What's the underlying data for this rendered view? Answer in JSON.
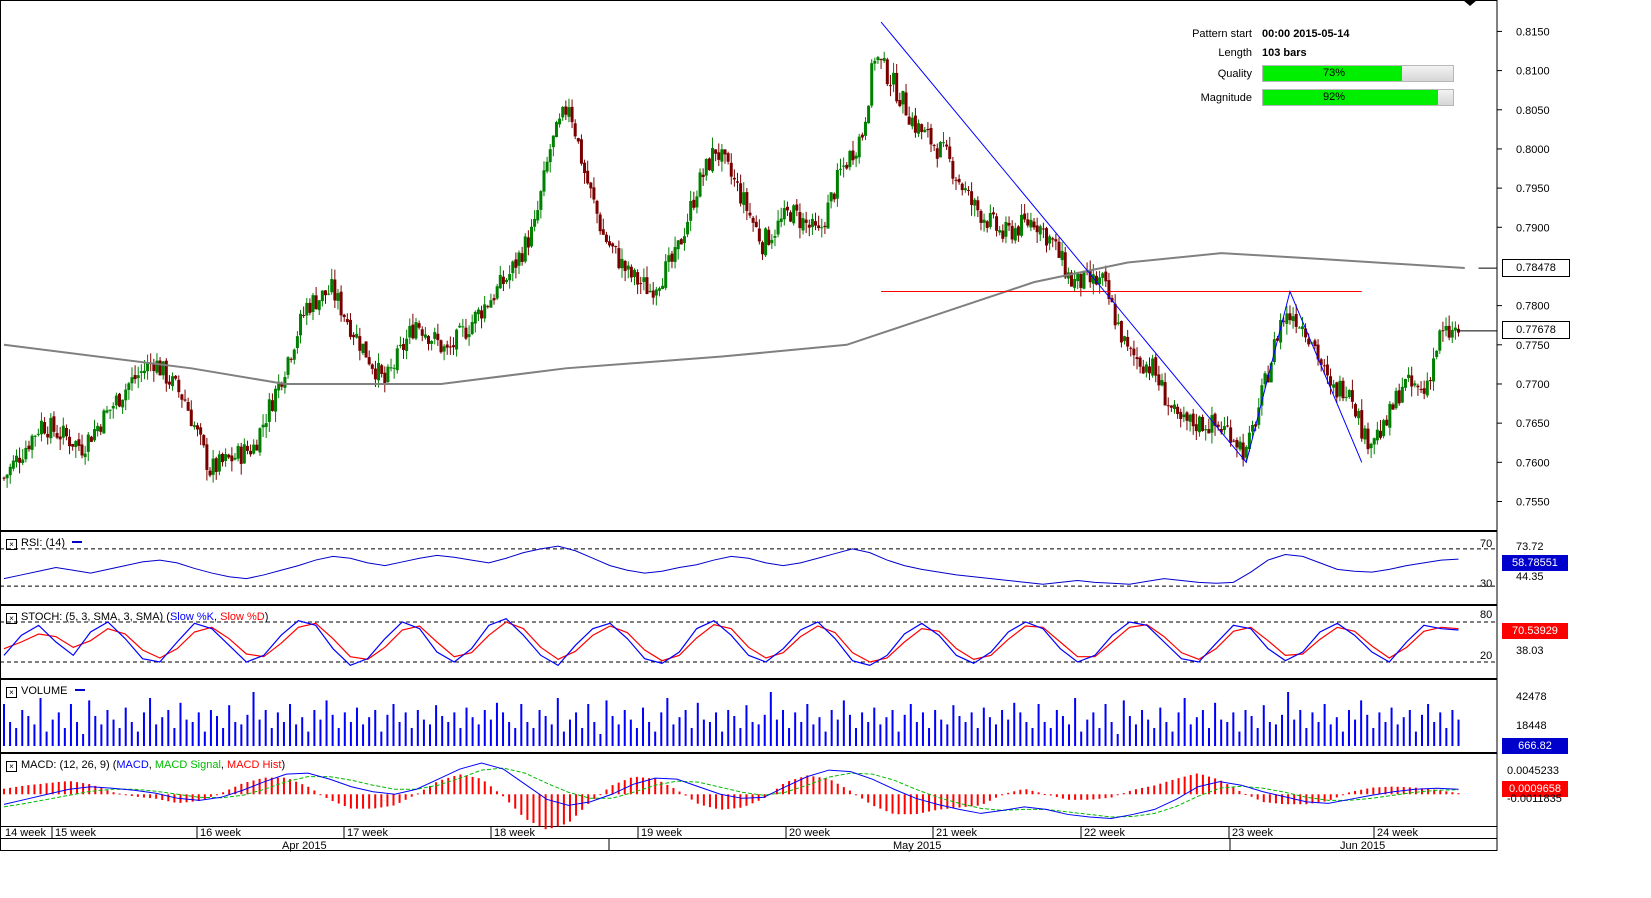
{
  "pattern_info": {
    "pattern_start_label": "Pattern start",
    "pattern_start_value": "00:00 2015-05-14",
    "length_label": "Length",
    "length_value": "103 bars",
    "quality_label": "Quality",
    "quality_value": "73%",
    "quality_fraction": 0.73,
    "magnitude_label": "Magnitude",
    "magnitude_value": "92%",
    "magnitude_fraction": 0.92
  },
  "colors": {
    "bull_candle": "#008000",
    "bear_candle": "#7a0000",
    "ma_line": "#808080",
    "pattern_line": "#0000ff",
    "support_line": "#ff0000",
    "rsi_line": "#0000cc",
    "stoch_k": "#0000ff",
    "stoch_d": "#ff0000",
    "volume": "#0000ff",
    "macd_line": "#0000ff",
    "macd_signal": "#00bb00",
    "macd_hist": "#ff0000",
    "quality_bar": "#00ee00"
  },
  "chart_data": [
    {
      "type": "candlestick",
      "y_ticks": [
        "0.8150",
        "0.8100",
        "0.8050",
        "0.8000",
        "0.7950",
        "0.7900",
        "0.7800",
        "0.7750",
        "0.7700",
        "0.7650",
        "0.7600",
        "0.7550"
      ],
      "ylim": [
        0.752,
        0.8185
      ],
      "ma_last_value": "0.78478",
      "current_price": "0.77678",
      "support_level": 0.7818,
      "pattern_points": [
        {
          "bar": 281,
          "price": 0.8162
        },
        {
          "bar": 398,
          "price": 0.76
        },
        {
          "bar": 412,
          "price": 0.7818
        },
        {
          "bar": 435,
          "price": 0.76
        }
      ],
      "ma_points": [
        {
          "bar": 0,
          "price": 0.775
        },
        {
          "bar": 60,
          "price": 0.772
        },
        {
          "bar": 90,
          "price": 0.77
        },
        {
          "bar": 140,
          "price": 0.77
        },
        {
          "bar": 180,
          "price": 0.772
        },
        {
          "bar": 230,
          "price": 0.7735
        },
        {
          "bar": 270,
          "price": 0.775
        },
        {
          "bar": 300,
          "price": 0.779
        },
        {
          "bar": 330,
          "price": 0.783
        },
        {
          "bar": 360,
          "price": 0.7855
        },
        {
          "bar": 390,
          "price": 0.7867
        },
        {
          "bar": 420,
          "price": 0.786
        },
        {
          "bar": 468,
          "price": 0.7848
        }
      ],
      "price_path": [
        {
          "bar": 0,
          "price": 0.758
        },
        {
          "bar": 12,
          "price": 0.765
        },
        {
          "bar": 25,
          "price": 0.762
        },
        {
          "bar": 40,
          "price": 0.77
        },
        {
          "bar": 48,
          "price": 0.773
        },
        {
          "bar": 58,
          "price": 0.768
        },
        {
          "bar": 66,
          "price": 0.759
        },
        {
          "bar": 80,
          "price": 0.762
        },
        {
          "bar": 88,
          "price": 0.77
        },
        {
          "bar": 97,
          "price": 0.78
        },
        {
          "bar": 105,
          "price": 0.782
        },
        {
          "bar": 113,
          "price": 0.776
        },
        {
          "bar": 122,
          "price": 0.77
        },
        {
          "bar": 132,
          "price": 0.778
        },
        {
          "bar": 142,
          "price": 0.774
        },
        {
          "bar": 152,
          "price": 0.779
        },
        {
          "bar": 162,
          "price": 0.784
        },
        {
          "bar": 170,
          "price": 0.79
        },
        {
          "bar": 175,
          "price": 0.8
        },
        {
          "bar": 181,
          "price": 0.806
        },
        {
          "bar": 186,
          "price": 0.797
        },
        {
          "bar": 192,
          "price": 0.789
        },
        {
          "bar": 200,
          "price": 0.784
        },
        {
          "bar": 207,
          "price": 0.782
        },
        {
          "bar": 215,
          "price": 0.786
        },
        {
          "bar": 222,
          "price": 0.795
        },
        {
          "bar": 228,
          "price": 0.8
        },
        {
          "bar": 235,
          "price": 0.795
        },
        {
          "bar": 243,
          "price": 0.788
        },
        {
          "bar": 252,
          "price": 0.792
        },
        {
          "bar": 261,
          "price": 0.789
        },
        {
          "bar": 268,
          "price": 0.797
        },
        {
          "bar": 275,
          "price": 0.802
        },
        {
          "bar": 279,
          "price": 0.812
        },
        {
          "bar": 284,
          "price": 0.809
        },
        {
          "bar": 292,
          "price": 0.803
        },
        {
          "bar": 302,
          "price": 0.799
        },
        {
          "bar": 310,
          "price": 0.793
        },
        {
          "bar": 320,
          "price": 0.789
        },
        {
          "bar": 330,
          "price": 0.791
        },
        {
          "bar": 336,
          "price": 0.788
        },
        {
          "bar": 342,
          "price": 0.783
        },
        {
          "bar": 352,
          "price": 0.783
        },
        {
          "bar": 360,
          "price": 0.774
        },
        {
          "bar": 368,
          "price": 0.772
        },
        {
          "bar": 376,
          "price": 0.765
        },
        {
          "bar": 385,
          "price": 0.765
        },
        {
          "bar": 393,
          "price": 0.764
        },
        {
          "bar": 398,
          "price": 0.761
        },
        {
          "bar": 404,
          "price": 0.77
        },
        {
          "bar": 409,
          "price": 0.778
        },
        {
          "bar": 413,
          "price": 0.779
        },
        {
          "bar": 419,
          "price": 0.776
        },
        {
          "bar": 425,
          "price": 0.769
        },
        {
          "bar": 431,
          "price": 0.77
        },
        {
          "bar": 436,
          "price": 0.763
        },
        {
          "bar": 442,
          "price": 0.764
        },
        {
          "bar": 448,
          "price": 0.77
        },
        {
          "bar": 455,
          "price": 0.769
        },
        {
          "bar": 460,
          "price": 0.776
        },
        {
          "bar": 466,
          "price": 0.7768
        }
      ]
    },
    {
      "type": "line",
      "name": "RSI",
      "title": "RSI: (14)",
      "levels": [
        "70",
        "30"
      ],
      "y_ticks": [
        "73.72",
        "44.35"
      ],
      "current_value": "58.78551",
      "values": [
        38,
        42,
        46,
        50,
        47,
        44,
        48,
        52,
        56,
        58,
        55,
        49,
        44,
        40,
        38,
        42,
        47,
        52,
        58,
        62,
        60,
        55,
        52,
        56,
        60,
        63,
        61,
        58,
        55,
        60,
        66,
        70,
        73,
        68,
        60,
        52,
        47,
        44,
        46,
        50,
        53,
        58,
        62,
        60,
        55,
        52,
        55,
        60,
        65,
        70,
        66,
        58,
        52,
        48,
        45,
        42,
        40,
        38,
        36,
        34,
        32,
        34,
        36,
        34,
        33,
        32,
        35,
        38,
        36,
        34,
        33,
        34,
        45,
        58,
        64,
        62,
        55,
        48,
        46,
        45,
        48,
        52,
        55,
        58,
        59
      ]
    },
    {
      "type": "line",
      "name": "STOCH",
      "title": "STOCH: (5, 3, SMA, 3, SMA)",
      "legend": [
        "Slow %K",
        "Slow %D"
      ],
      "levels": [
        "80",
        "20"
      ],
      "y_ticks": [
        "38.03"
      ],
      "current_value": "70.53929",
      "k_values": [
        30,
        60,
        75,
        50,
        30,
        65,
        80,
        55,
        25,
        20,
        50,
        78,
        70,
        45,
        20,
        30,
        60,
        82,
        75,
        40,
        15,
        25,
        55,
        80,
        70,
        35,
        20,
        40,
        75,
        85,
        60,
        30,
        15,
        45,
        70,
        78,
        55,
        25,
        18,
        35,
        70,
        82,
        60,
        30,
        20,
        40,
        68,
        80,
        55,
        22,
        15,
        30,
        62,
        78,
        60,
        30,
        18,
        35,
        65,
        80,
        70,
        40,
        20,
        30,
        60,
        80,
        75,
        50,
        25,
        20,
        48,
        75,
        70,
        40,
        22,
        35,
        65,
        78,
        60,
        35,
        20,
        50,
        75,
        70,
        68
      ],
      "d_values": [
        40,
        50,
        62,
        58,
        42,
        52,
        70,
        62,
        38,
        26,
        40,
        65,
        72,
        55,
        32,
        28,
        48,
        72,
        78,
        55,
        28,
        24,
        42,
        68,
        74,
        50,
        28,
        34,
        60,
        80,
        70,
        42,
        24,
        36,
        60,
        74,
        64,
        38,
        22,
        30,
        56,
        76,
        70,
        42,
        26,
        34,
        58,
        74,
        64,
        34,
        20,
        26,
        50,
        70,
        66,
        40,
        24,
        30,
        54,
        74,
        72,
        50,
        28,
        28,
        50,
        72,
        76,
        58,
        34,
        24,
        40,
        66,
        72,
        52,
        30,
        32,
        54,
        72,
        66,
        44,
        26,
        42,
        66,
        72,
        70
      ]
    },
    {
      "type": "bar",
      "name": "VOLUME",
      "title": "VOLUME",
      "y_ticks": [
        "42478",
        "18448"
      ],
      "current_value": "666.82",
      "values": [
        35,
        20,
        15,
        30,
        25,
        18,
        40,
        12,
        22,
        28,
        15,
        35,
        20,
        10,
        38,
        25,
        18,
        30,
        22,
        15,
        32,
        20,
        12,
        28,
        40,
        18,
        24,
        30,
        15,
        36,
        22,
        20,
        28,
        12,
        30,
        25,
        15,
        34,
        20,
        18,
        26,
        45,
        22,
        30,
        15,
        28,
        20,
        35,
        18,
        24,
        12,
        30,
        22,
        38,
        26,
        15,
        28,
        20,
        32,
        18,
        24,
        30,
        12,
        26,
        35,
        20,
        28,
        15,
        30,
        22,
        18,
        34,
        25,
        20,
        28,
        15,
        32,
        24,
        18,
        30,
        22,
        36,
        28,
        20,
        15
      ]
    },
    {
      "type": "bar+line",
      "name": "MACD",
      "title": "MACD: (12, 26, 9)",
      "legend": [
        "MACD",
        "MACD Signal",
        "MACD Hist"
      ],
      "y_ticks": [
        "0.0045233",
        "-0.0011835"
      ],
      "current_value": "0.0009658",
      "macd_values": [
        -0.002,
        -0.001,
        0.0,
        0.001,
        0.0015,
        0.0012,
        0.0008,
        0.0002,
        -0.0008,
        -0.0012,
        -0.0006,
        0.0008,
        0.0025,
        0.004,
        0.0042,
        0.003,
        0.0015,
        0.0005,
        0.0,
        0.001,
        0.003,
        0.005,
        0.0062,
        0.005,
        0.002,
        -0.001,
        -0.0022,
        -0.0015,
        0.0,
        0.002,
        0.0032,
        0.003,
        0.0015,
        0.0,
        -0.0008,
        -0.0006,
        0.0015,
        0.0035,
        0.0048,
        0.0045,
        0.003,
        0.001,
        -0.0008,
        -0.002,
        -0.003,
        -0.0038,
        -0.0032,
        -0.0025,
        -0.003,
        -0.004,
        -0.0045,
        -0.0048,
        -0.004,
        -0.003,
        -0.001,
        0.0015,
        0.0025,
        0.0018,
        0.0005,
        -0.0005,
        -0.0015,
        -0.0018,
        -0.001,
        -0.0002,
        0.0005,
        0.001,
        0.0012,
        0.001
      ],
      "signal_values": [
        -0.0025,
        -0.0018,
        -0.001,
        -0.0002,
        0.0006,
        0.001,
        0.001,
        0.0006,
        0.0,
        -0.0006,
        -0.0007,
        -0.0002,
        0.001,
        0.0025,
        0.0035,
        0.0035,
        0.0028,
        0.0018,
        0.001,
        0.001,
        0.0018,
        0.0032,
        0.0048,
        0.0052,
        0.0042,
        0.0022,
        0.0004,
        -0.0008,
        -0.0008,
        0.0004,
        0.0018,
        0.0026,
        0.0024,
        0.0014,
        0.0004,
        -0.0002,
        0.0004,
        0.0018,
        0.0034,
        0.0042,
        0.004,
        0.0028,
        0.001,
        -0.0006,
        -0.0018,
        -0.0028,
        -0.0032,
        -0.003,
        -0.003,
        -0.0035,
        -0.004,
        -0.0045,
        -0.0044,
        -0.0038,
        -0.0024,
        -0.0004,
        0.0012,
        0.0016,
        0.0012,
        0.0004,
        -0.0006,
        -0.0012,
        -0.0012,
        -0.0008,
        -0.0002,
        0.0004,
        0.0008,
        0.0009
      ]
    }
  ],
  "x_axis": {
    "weeks": [
      "14 week",
      "15 week",
      "16 week",
      "17 week",
      "18 week",
      "19 week",
      "20 week",
      "21 week",
      "22 week",
      "23 week",
      "24 week"
    ],
    "months": [
      "Apr 2015",
      "May 2015",
      "Jun 2015"
    ]
  }
}
